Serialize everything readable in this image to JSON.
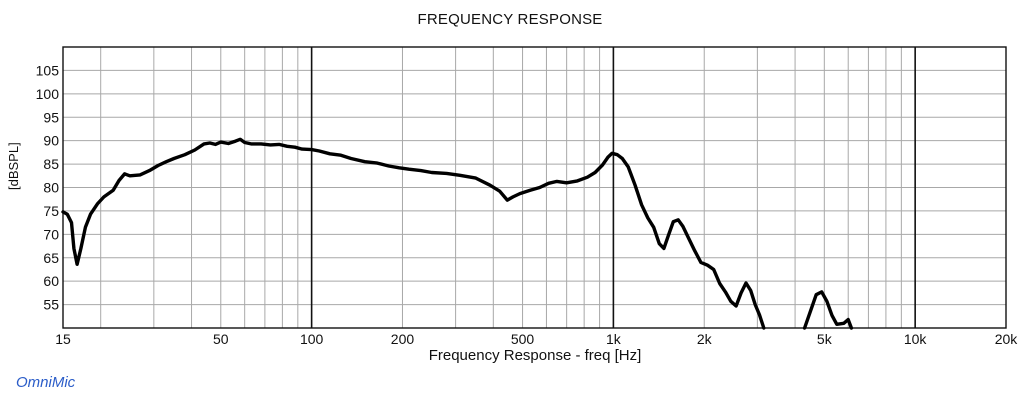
{
  "chart_data": {
    "type": "line",
    "title": "FREQUENCY RESPONSE",
    "xlabel": "Frequency Response - freq [Hz]",
    "ylabel": "[dBSPL]",
    "xscale": "log",
    "xlim": [
      15,
      20000
    ],
    "ylim": [
      50,
      110
    ],
    "grid": true,
    "x_ticks": [
      {
        "value": 15,
        "label": "15"
      },
      {
        "value": 50,
        "label": "50"
      },
      {
        "value": 100,
        "label": "100"
      },
      {
        "value": 200,
        "label": "200"
      },
      {
        "value": 500,
        "label": "500"
      },
      {
        "value": 1000,
        "label": "1k"
      },
      {
        "value": 2000,
        "label": "2k"
      },
      {
        "value": 5000,
        "label": "5k"
      },
      {
        "value": 10000,
        "label": "10k"
      },
      {
        "value": 20000,
        "label": "20k"
      }
    ],
    "y_ticks": [
      {
        "value": 55,
        "label": "55"
      },
      {
        "value": 60,
        "label": "60"
      },
      {
        "value": 65,
        "label": "65"
      },
      {
        "value": 70,
        "label": "70"
      },
      {
        "value": 75,
        "label": "75"
      },
      {
        "value": 80,
        "label": "80"
      },
      {
        "value": 85,
        "label": "85"
      },
      {
        "value": 90,
        "label": "90"
      },
      {
        "value": 95,
        "label": "95"
      },
      {
        "value": 100,
        "label": "100"
      },
      {
        "value": 105,
        "label": "105"
      }
    ],
    "line_color": "#000000",
    "series": [
      {
        "segments": [
          [
            [
              15,
              74.8
            ],
            [
              15.5,
              74.3
            ],
            [
              16,
              72.5
            ],
            [
              16.3,
              67
            ],
            [
              16.7,
              63.6
            ],
            [
              17.2,
              67
            ],
            [
              17.8,
              71.5
            ],
            [
              18.5,
              74.3
            ],
            [
              19.5,
              76.5
            ],
            [
              20.5,
              78
            ],
            [
              22,
              79.4
            ],
            [
              23,
              81.5
            ],
            [
              24,
              82.9
            ],
            [
              25,
              82.5
            ],
            [
              27,
              82.7
            ],
            [
              29,
              83.6
            ],
            [
              31,
              84.7
            ],
            [
              33,
              85.5
            ],
            [
              35,
              86.2
            ],
            [
              38,
              87
            ],
            [
              41,
              88
            ],
            [
              44,
              89.3
            ],
            [
              46,
              89.5
            ],
            [
              48,
              89.2
            ],
            [
              50,
              89.7
            ],
            [
              53,
              89.4
            ],
            [
              56,
              89.9
            ],
            [
              58,
              90.3
            ],
            [
              60,
              89.6
            ],
            [
              63,
              89.3
            ],
            [
              68,
              89.3
            ],
            [
              73,
              89.1
            ],
            [
              78,
              89.2
            ],
            [
              83,
              88.8
            ],
            [
              88,
              88.6
            ],
            [
              93,
              88.2
            ],
            [
              100,
              88.1
            ],
            [
              106,
              87.8
            ],
            [
              115,
              87.2
            ],
            [
              125,
              86.9
            ],
            [
              135,
              86.2
            ],
            [
              150,
              85.5
            ],
            [
              165,
              85.2
            ],
            [
              180,
              84.6
            ],
            [
              195,
              84.2
            ],
            [
              210,
              83.9
            ],
            [
              230,
              83.6
            ],
            [
              250,
              83.2
            ],
            [
              280,
              83
            ],
            [
              310,
              82.6
            ],
            [
              350,
              82
            ],
            [
              390,
              80.5
            ],
            [
              420,
              79.2
            ],
            [
              445,
              77.3
            ],
            [
              465,
              78
            ],
            [
              490,
              78.7
            ],
            [
              530,
              79.4
            ],
            [
              570,
              80
            ],
            [
              610,
              80.9
            ],
            [
              650,
              81.3
            ],
            [
              700,
              81
            ],
            [
              760,
              81.4
            ],
            [
              820,
              82.2
            ],
            [
              870,
              83.2
            ],
            [
              920,
              84.8
            ],
            [
              960,
              86.5
            ],
            [
              990,
              87.3
            ],
            [
              1030,
              87
            ],
            [
              1070,
              86.2
            ],
            [
              1120,
              84.4
            ],
            [
              1180,
              80.5
            ],
            [
              1240,
              76.3
            ],
            [
              1300,
              73.5
            ],
            [
              1360,
              71.5
            ],
            [
              1420,
              68
            ],
            [
              1470,
              67
            ],
            [
              1520,
              69.7
            ],
            [
              1580,
              72.7
            ],
            [
              1640,
              73.1
            ],
            [
              1700,
              71.7
            ],
            [
              1780,
              69
            ],
            [
              1860,
              66.5
            ],
            [
              1950,
              64
            ],
            [
              2050,
              63.4
            ],
            [
              2150,
              62.5
            ],
            [
              2250,
              59.5
            ],
            [
              2350,
              57.7
            ],
            [
              2450,
              55.7
            ],
            [
              2550,
              54.7
            ],
            [
              2650,
              57.5
            ],
            [
              2750,
              59.6
            ],
            [
              2850,
              58
            ],
            [
              2950,
              55
            ],
            [
              3050,
              52.8
            ],
            [
              3150,
              50
            ]
          ],
          [
            [
              4300,
              50
            ],
            [
              4500,
              53.6
            ],
            [
              4700,
              57.1
            ],
            [
              4900,
              57.7
            ],
            [
              5100,
              55.7
            ],
            [
              5300,
              52.7
            ],
            [
              5500,
              50.8
            ],
            [
              5800,
              51
            ],
            [
              6000,
              51.8
            ],
            [
              6150,
              50
            ]
          ]
        ]
      }
    ]
  },
  "footer": {
    "brand": "OmniMic"
  }
}
